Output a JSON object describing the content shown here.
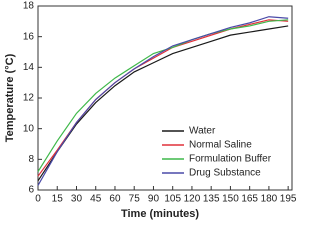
{
  "chart_data": {
    "type": "line",
    "xlabel": "Time (minutes)",
    "ylabel": "Temperature (°C)",
    "x": [
      0,
      15,
      30,
      45,
      60,
      75,
      90,
      105,
      120,
      135,
      150,
      165,
      180,
      195
    ],
    "series": [
      {
        "name": "Water",
        "color": "#1a1a1a",
        "values": [
          6.6,
          8.5,
          10.3,
          11.7,
          12.8,
          13.7,
          14.3,
          14.9,
          15.3,
          15.7,
          16.1,
          16.3,
          16.5,
          16.7
        ]
      },
      {
        "name": "Normal Saline",
        "color": "#e0303a",
        "values": [
          6.9,
          8.6,
          10.4,
          11.9,
          13.0,
          13.9,
          14.6,
          15.3,
          15.7,
          16.1,
          16.5,
          16.8,
          17.1,
          17.0
        ]
      },
      {
        "name": "Formulation Buffer",
        "color": "#3fb84a",
        "values": [
          7.2,
          9.2,
          11.0,
          12.3,
          13.3,
          14.1,
          14.9,
          15.3,
          15.8,
          16.2,
          16.5,
          16.7,
          17.0,
          17.1
        ]
      },
      {
        "name": "Drug Substance",
        "color": "#4a4aa8",
        "values": [
          6.3,
          8.5,
          10.4,
          11.9,
          13.0,
          13.9,
          14.7,
          15.4,
          15.8,
          16.2,
          16.6,
          16.9,
          17.3,
          17.2
        ]
      }
    ],
    "xlim": [
      0,
      198
    ],
    "xticks": [
      0,
      15,
      30,
      45,
      60,
      75,
      90,
      105,
      120,
      135,
      150,
      165,
      180,
      195
    ],
    "ylim": [
      6,
      18
    ],
    "yticks": [
      6,
      8,
      10,
      12,
      14,
      16,
      18
    ],
    "legend": "lower-right"
  }
}
